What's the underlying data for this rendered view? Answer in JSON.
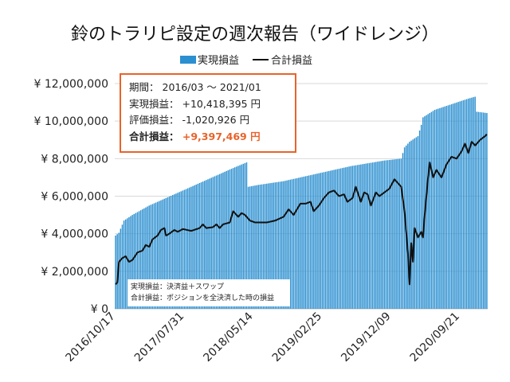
{
  "chart_data": {
    "type": "bar+line",
    "title": "鈴のトラリピ設定の週次報告（ワイドレンジ）",
    "legend": [
      {
        "name": "実現損益",
        "kind": "bar",
        "color": "#2b8fd0"
      },
      {
        "name": "合計損益",
        "kind": "line",
        "color": "#111111"
      }
    ],
    "legend_position": "top",
    "ylim": [
      0,
      12000000
    ],
    "y_ticks": [
      0,
      2000000,
      4000000,
      6000000,
      8000000,
      10000000,
      12000000
    ],
    "y_tick_labels": [
      "¥ 0",
      "¥ 2,000,000",
      "¥ 4,000,000",
      "¥ 6,000,000",
      "¥ 8,000,000",
      "¥ 10,000,000",
      "¥ 12,000,000"
    ],
    "x_tick_labels": [
      "2016/10/17",
      "2017/07/31",
      "2018/05/14",
      "2019/02/25",
      "2019/12/09",
      "2020/09/21"
    ],
    "x_tick_weeks": [
      0,
      41,
      82,
      123,
      164,
      205
    ],
    "bar_width_weeks": 0.7,
    "week_count": 222,
    "grid": true,
    "series": [
      {
        "name": "実現損益",
        "type": "bar",
        "keypoints": [
          [
            0,
            3900000
          ],
          [
            2,
            4050000
          ],
          [
            5,
            4700000
          ],
          [
            10,
            5000000
          ],
          [
            20,
            5500000
          ],
          [
            30,
            5900000
          ],
          [
            40,
            6300000
          ],
          [
            50,
            6700000
          ],
          [
            60,
            7100000
          ],
          [
            70,
            7500000
          ],
          [
            78,
            7800000
          ],
          [
            79,
            6500000
          ],
          [
            85,
            6600000
          ],
          [
            100,
            6800000
          ],
          [
            120,
            7200000
          ],
          [
            140,
            7600000
          ],
          [
            160,
            7900000
          ],
          [
            170,
            8000000
          ],
          [
            172,
            8600000
          ],
          [
            175,
            8900000
          ],
          [
            180,
            9200000
          ],
          [
            182,
            9800000
          ],
          [
            183,
            10200000
          ],
          [
            190,
            10600000
          ],
          [
            200,
            10900000
          ],
          [
            210,
            11200000
          ],
          [
            214,
            11300000
          ],
          [
            215,
            10500000
          ],
          [
            222,
            10418395
          ]
        ]
      },
      {
        "name": "合計損益",
        "type": "line",
        "keypoints": [
          [
            0,
            1300000
          ],
          [
            1,
            1400000
          ],
          [
            2,
            2500000
          ],
          [
            4,
            2700000
          ],
          [
            6,
            2800000
          ],
          [
            8,
            2500000
          ],
          [
            10,
            2600000
          ],
          [
            13,
            3000000
          ],
          [
            16,
            3100000
          ],
          [
            18,
            3400000
          ],
          [
            20,
            3300000
          ],
          [
            22,
            3700000
          ],
          [
            25,
            3900000
          ],
          [
            27,
            4200000
          ],
          [
            29,
            4300000
          ],
          [
            30,
            3900000
          ],
          [
            32,
            4000000
          ],
          [
            35,
            4200000
          ],
          [
            37,
            4100000
          ],
          [
            40,
            4250000
          ],
          [
            45,
            4150000
          ],
          [
            50,
            4300000
          ],
          [
            52,
            4500000
          ],
          [
            54,
            4300000
          ],
          [
            58,
            4350000
          ],
          [
            60,
            4500000
          ],
          [
            62,
            4300000
          ],
          [
            64,
            4500000
          ],
          [
            68,
            4600000
          ],
          [
            70,
            5200000
          ],
          [
            73,
            4900000
          ],
          [
            75,
            5100000
          ],
          [
            77,
            5000000
          ],
          [
            80,
            4700000
          ],
          [
            83,
            4600000
          ],
          [
            90,
            4600000
          ],
          [
            95,
            4700000
          ],
          [
            100,
            4900000
          ],
          [
            103,
            5300000
          ],
          [
            106,
            5000000
          ],
          [
            110,
            5600000
          ],
          [
            113,
            5600000
          ],
          [
            116,
            5700000
          ],
          [
            118,
            5200000
          ],
          [
            121,
            5500000
          ],
          [
            124,
            5900000
          ],
          [
            127,
            6200000
          ],
          [
            130,
            6300000
          ],
          [
            133,
            6000000
          ],
          [
            136,
            6100000
          ],
          [
            138,
            5700000
          ],
          [
            141,
            5900000
          ],
          [
            143,
            6500000
          ],
          [
            146,
            5700000
          ],
          [
            148,
            6200000
          ],
          [
            150,
            6100000
          ],
          [
            152,
            5500000
          ],
          [
            155,
            6200000
          ],
          [
            157,
            6000000
          ],
          [
            160,
            6200000
          ],
          [
            163,
            6400000
          ],
          [
            166,
            6900000
          ],
          [
            168,
            6700000
          ],
          [
            170,
            6500000
          ],
          [
            172,
            5200000
          ],
          [
            174,
            3000000
          ],
          [
            175,
            1300000
          ],
          [
            176,
            3500000
          ],
          [
            177,
            2500000
          ],
          [
            178,
            4300000
          ],
          [
            180,
            3800000
          ],
          [
            182,
            4100000
          ],
          [
            183,
            3800000
          ],
          [
            184,
            5000000
          ],
          [
            186,
            7000000
          ],
          [
            187,
            7800000
          ],
          [
            189,
            7000000
          ],
          [
            191,
            7400000
          ],
          [
            194,
            7000000
          ],
          [
            197,
            7700000
          ],
          [
            200,
            8100000
          ],
          [
            203,
            8000000
          ],
          [
            206,
            8400000
          ],
          [
            208,
            8800000
          ],
          [
            210,
            8300000
          ],
          [
            212,
            8900000
          ],
          [
            214,
            8700000
          ],
          [
            217,
            9000000
          ],
          [
            220,
            9200000
          ],
          [
            222,
            9397469
          ]
        ]
      }
    ]
  },
  "info_box": {
    "period_label": "期間：",
    "period_value": "2016/03 ～ 2021/01",
    "realized_label": "実現損益：",
    "realized_value": "+10,418,395 円",
    "unrealized_label": "評価損益：",
    "unrealized_value": "-1,020,926 円",
    "total_label": "合計損益：",
    "total_value": "+9,397,469 円"
  },
  "note_box": {
    "line1": "実現損益：決済益＋スワップ",
    "line2": "合計損益：ポジションを全決済した時の損益"
  }
}
